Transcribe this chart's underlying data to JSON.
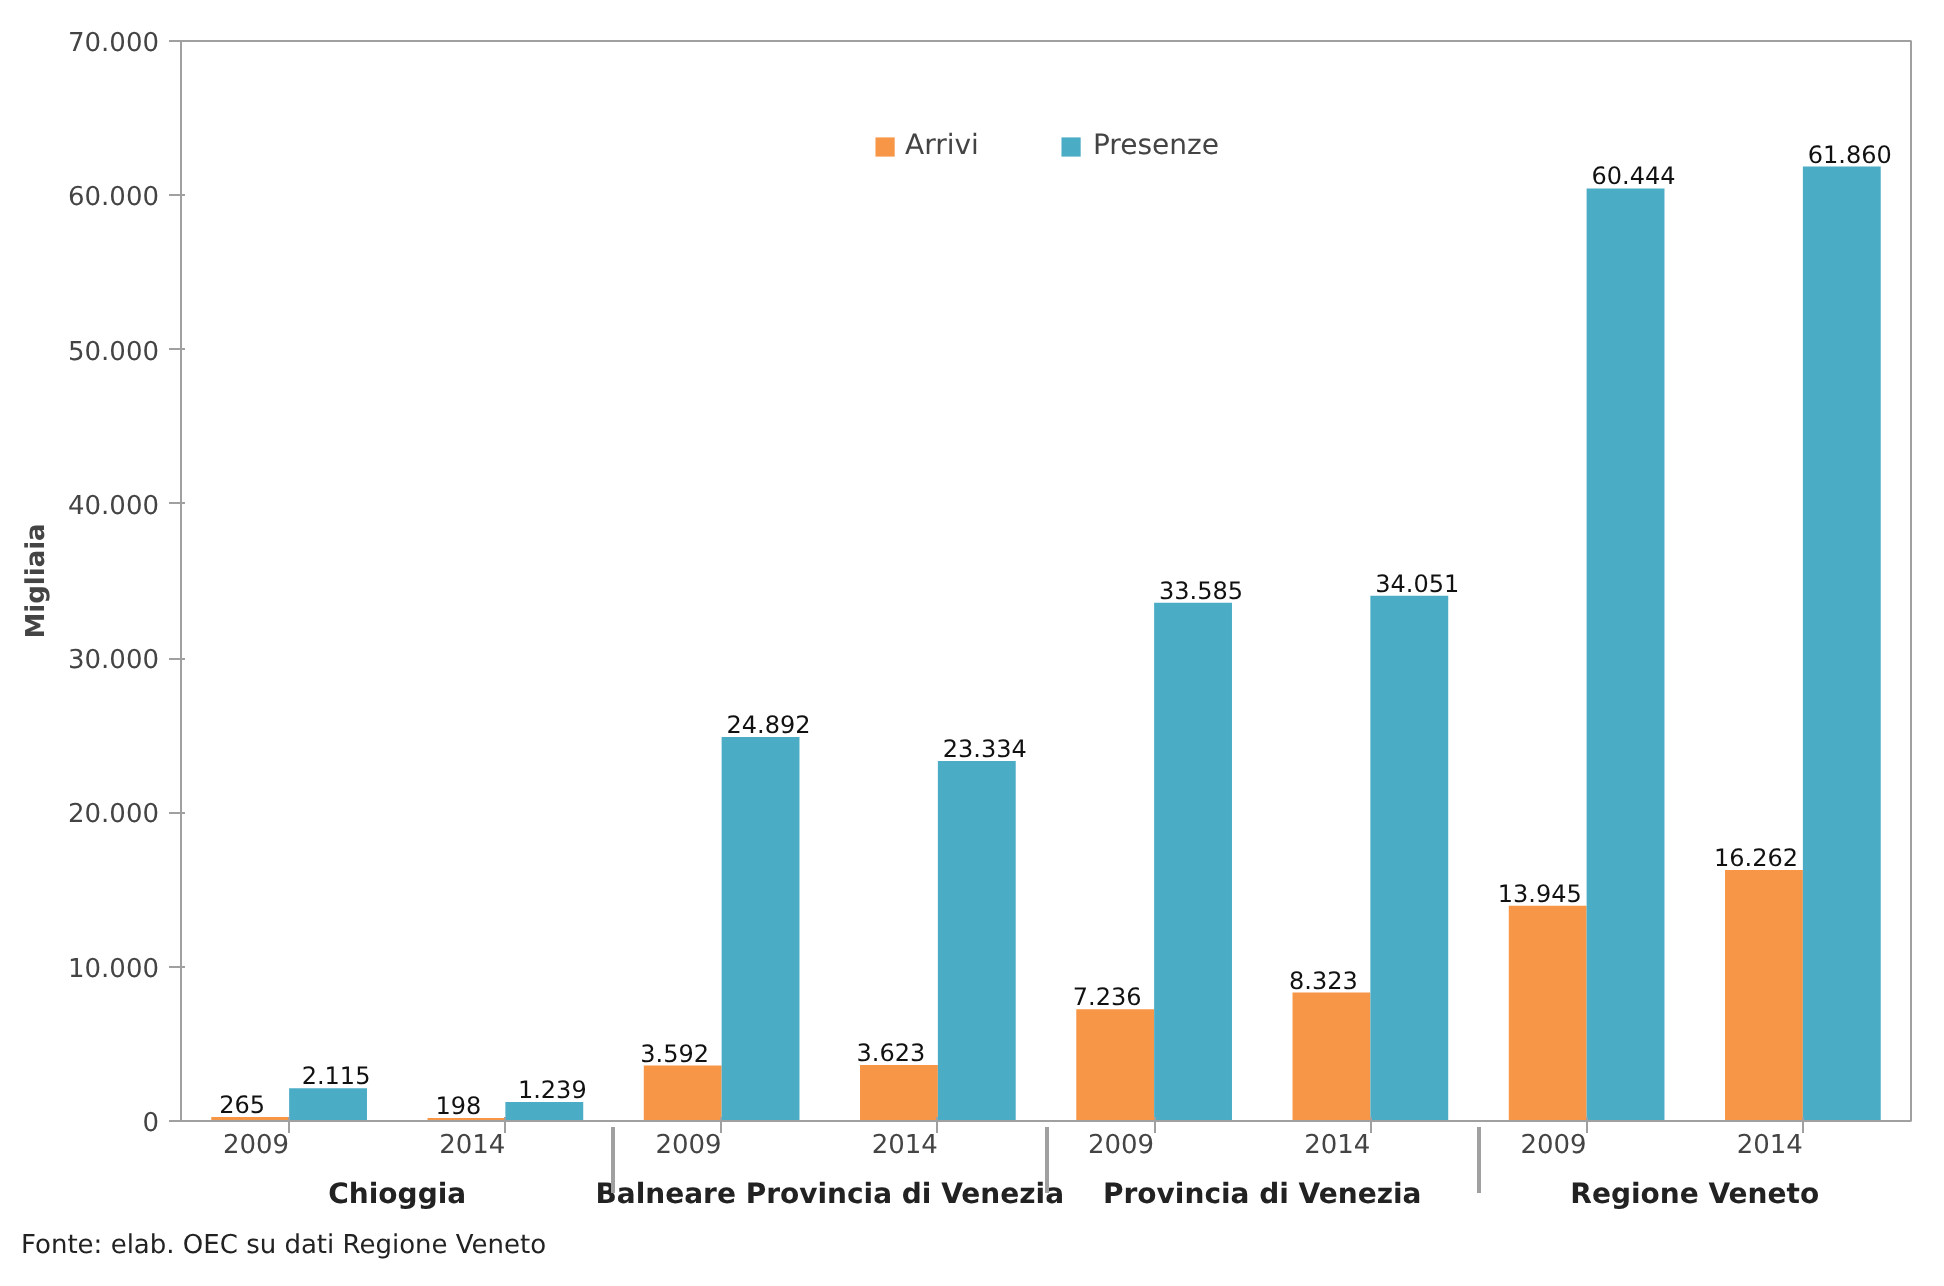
{
  "chart_data": {
    "type": "bar",
    "ylabel": "Migliaia",
    "categories": [
      "2009",
      "2014",
      "2009",
      "2014",
      "2009",
      "2014",
      "2009",
      "2014"
    ],
    "series": [
      {
        "name": "Arrivi",
        "color": "#f79646",
        "values": [
          265,
          198,
          3592,
          3623,
          7236,
          8323,
          13945,
          16262
        ],
        "value_labels": [
          "265",
          "198",
          "3.592",
          "3.623",
          "7.236",
          "8.323",
          "13.945",
          "16.262"
        ]
      },
      {
        "name": "Presenze",
        "color": "#4bacc6",
        "values": [
          2115,
          1239,
          24892,
          23334,
          33585,
          34051,
          60444,
          61860
        ],
        "value_labels": [
          "2.115",
          "1.239",
          "24.892",
          "23.334",
          "33.585",
          "34.051",
          "60.444",
          "61.860"
        ]
      }
    ],
    "ylim": [
      0,
      70000
    ],
    "yticks": [
      {
        "value": 0,
        "label": "0"
      },
      {
        "value": 10000,
        "label": "10.000"
      },
      {
        "value": 20000,
        "label": "20.000"
      },
      {
        "value": 30000,
        "label": "30.000"
      },
      {
        "value": 40000,
        "label": "40.000"
      },
      {
        "value": 50000,
        "label": "50.000"
      },
      {
        "value": 60000,
        "label": "60.000"
      },
      {
        "value": 70000,
        "label": "70.000"
      }
    ],
    "annotations": [
      "Chioggia",
      "Balneare Provincia di Venezia",
      "Provincia di Venezia",
      "Regione Veneto",
      "Fonte: elab. OEC su dati Regione Veneto"
    ],
    "legend": "top",
    "grid": false
  }
}
